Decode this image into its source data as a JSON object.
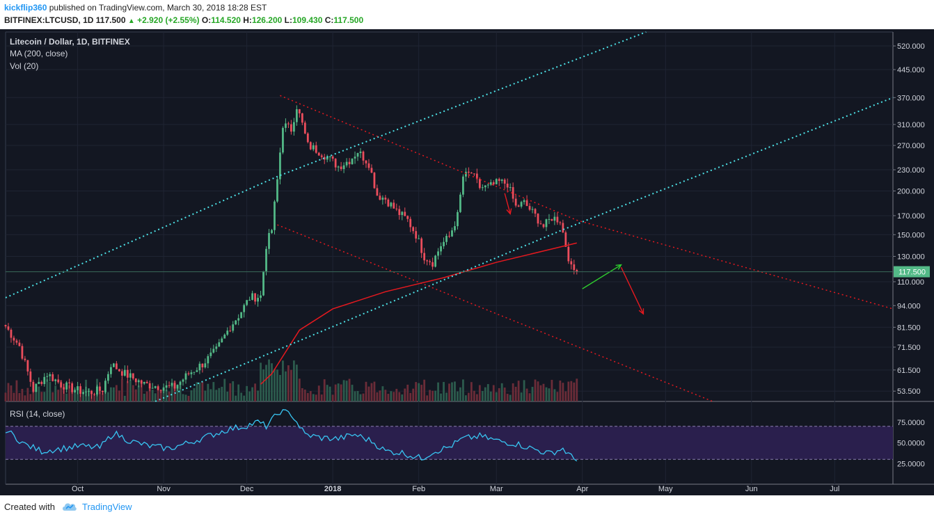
{
  "header": {
    "author": "kickflip360",
    "published": "published on TradingView.com, March 30, 2018 18:28 EST",
    "symbol": "BITFINEX:LTCUSD, 1D",
    "last": "117.500",
    "change": "+2.920 (+2.55%)",
    "o_label": "O:",
    "o": "114.520",
    "h_label": "H:",
    "h": "126.200",
    "l_label": "L:",
    "l": "109.430",
    "c_label": "C:",
    "c": "117.500"
  },
  "footer": {
    "created": "Created with",
    "brand": "TradingView"
  },
  "colors": {
    "bg": "#131722",
    "up": "#53b987",
    "down": "#eb4d5c",
    "ma": "#e5191f",
    "rsi": "#38c5f2",
    "channel": "#4de3e8",
    "trend": "#e5191f"
  },
  "chart_data": [
    {
      "type": "candlestick",
      "title": "Litecoin / Dollar, 1D, BITFINEX",
      "legend": [
        "Litecoin / Dollar, 1D, BITFINEX",
        "MA (200, close)",
        "Vol (20)"
      ],
      "x_range": [
        "2017-09-05",
        "2018-07-22"
      ],
      "ylim": [
        50,
        570
      ],
      "scale": "log",
      "y_ticks": [
        "520.000",
        "445.000",
        "370.000",
        "310.000",
        "270.000",
        "230.000",
        "200.000",
        "170.000",
        "150.000",
        "130.000",
        "110.000",
        "94.000",
        "81.500",
        "71.500",
        "61.500",
        "53.500"
      ],
      "x_ticks": [
        "Oct",
        "Nov",
        "Dec",
        "2018",
        "Feb",
        "Mar",
        "Apr",
        "May",
        "Jun",
        "Jul"
      ],
      "last_price_label": "117.500",
      "close_anchors": [
        [
          "2017-09-05",
          82
        ],
        [
          "2017-09-10",
          72
        ],
        [
          "2017-09-15",
          54
        ],
        [
          "2017-09-20",
          60
        ],
        [
          "2017-09-25",
          56
        ],
        [
          "2017-09-30",
          54
        ],
        [
          "2017-10-05",
          53
        ],
        [
          "2017-10-10",
          54
        ],
        [
          "2017-10-13",
          64
        ],
        [
          "2017-10-18",
          60
        ],
        [
          "2017-10-25",
          56
        ],
        [
          "2017-11-01",
          55
        ],
        [
          "2017-11-05",
          55
        ],
        [
          "2017-11-10",
          60
        ],
        [
          "2017-11-15",
          64
        ],
        [
          "2017-11-20",
          70
        ],
        [
          "2017-11-25",
          82
        ],
        [
          "2017-11-28",
          88
        ],
        [
          "2017-12-02",
          99
        ],
        [
          "2017-12-06",
          100
        ],
        [
          "2017-12-08",
          140
        ],
        [
          "2017-12-10",
          155
        ],
        [
          "2017-12-12",
          215
        ],
        [
          "2017-12-14",
          310
        ],
        [
          "2017-12-17",
          300
        ],
        [
          "2017-12-19",
          350
        ],
        [
          "2017-12-21",
          310
        ],
        [
          "2017-12-23",
          270
        ],
        [
          "2017-12-27",
          260
        ],
        [
          "2017-12-30",
          250
        ],
        [
          "2018-01-03",
          235
        ],
        [
          "2018-01-07",
          245
        ],
        [
          "2018-01-10",
          260
        ],
        [
          "2018-01-14",
          240
        ],
        [
          "2018-01-17",
          195
        ],
        [
          "2018-01-20",
          190
        ],
        [
          "2018-01-24",
          175
        ],
        [
          "2018-01-28",
          165
        ],
        [
          "2018-01-31",
          150
        ],
        [
          "2018-02-03",
          130
        ],
        [
          "2018-02-06",
          125
        ],
        [
          "2018-02-09",
          140
        ],
        [
          "2018-02-12",
          148
        ],
        [
          "2018-02-15",
          170
        ],
        [
          "2018-02-17",
          220
        ],
        [
          "2018-02-20",
          225
        ],
        [
          "2018-02-23",
          205
        ],
        [
          "2018-02-26",
          205
        ],
        [
          "2018-03-02",
          212
        ],
        [
          "2018-03-05",
          210
        ],
        [
          "2018-03-08",
          180
        ],
        [
          "2018-03-11",
          185
        ],
        [
          "2018-03-15",
          170
        ],
        [
          "2018-03-18",
          158
        ],
        [
          "2018-03-21",
          168
        ],
        [
          "2018-03-24",
          165
        ],
        [
          "2018-03-26",
          140
        ],
        [
          "2018-03-28",
          120
        ],
        [
          "2018-03-30",
          117.5
        ]
      ],
      "ma200": [
        [
          "2017-12-06",
          56
        ],
        [
          "2017-12-10",
          60
        ],
        [
          "2017-12-20",
          80
        ],
        [
          "2018-01-01",
          92
        ],
        [
          "2018-01-20",
          103
        ],
        [
          "2018-02-10",
          113
        ],
        [
          "2018-03-01",
          125
        ],
        [
          "2018-03-30",
          142
        ]
      ],
      "ma_label": "MA (200, close)",
      "vol_label": "Vol (20)",
      "channel_lines": [
        [
          [
            "2017-09-05",
            99
          ],
          [
            "2017-12-12",
            220
          ],
          [
            "2018-04-24",
            570
          ]
        ],
        [
          [
            "2017-10-29",
            50
          ],
          [
            "2018-03-25",
            155
          ],
          [
            "2018-07-22",
            370
          ]
        ]
      ],
      "trend_lines": [
        [
          [
            "2017-12-13",
            375
          ],
          [
            "2018-03-30",
            165
          ],
          [
            "2018-07-22",
            92
          ]
        ],
        [
          [
            "2017-12-12",
            160
          ],
          [
            "2018-05-18",
            50
          ]
        ]
      ],
      "annotation_arrows": [
        [
          [
            "2018-03-04",
            197
          ],
          [
            "2018-03-06",
            172
          ]
        ],
        [
          [
            "2018-04-01",
            105
          ],
          [
            "2018-04-15",
            123
          ]
        ],
        [
          [
            "2018-04-15",
            121
          ],
          [
            "2018-04-23",
            89
          ]
        ]
      ]
    },
    {
      "type": "line",
      "title": "RSI (14, close)",
      "ylim": [
        0,
        100
      ],
      "y_ticks": [
        "75.0000",
        "50.0000",
        "25.0000"
      ],
      "band": [
        30,
        70
      ],
      "x": [
        "2017-09-05",
        "2017-09-12",
        "2017-09-18",
        "2017-09-25",
        "2017-10-02",
        "2017-10-09",
        "2017-10-14",
        "2017-10-20",
        "2017-10-27",
        "2017-11-03",
        "2017-11-10",
        "2017-11-17",
        "2017-11-24",
        "2017-11-30",
        "2017-12-05",
        "2017-12-08",
        "2017-12-13",
        "2017-12-17",
        "2017-12-22",
        "2017-12-28",
        "2018-01-03",
        "2018-01-09",
        "2018-01-15",
        "2018-01-20",
        "2018-01-26",
        "2018-02-02",
        "2018-02-06",
        "2018-02-12",
        "2018-02-17",
        "2018-02-23",
        "2018-03-02",
        "2018-03-08",
        "2018-03-14",
        "2018-03-20",
        "2018-03-25",
        "2018-03-28",
        "2018-03-30"
      ],
      "values": [
        66,
        48,
        40,
        43,
        46,
        44,
        62,
        52,
        46,
        43,
        50,
        58,
        66,
        70,
        75,
        70,
        88,
        85,
        60,
        56,
        55,
        60,
        52,
        40,
        38,
        31,
        39,
        45,
        55,
        58,
        52,
        49,
        43,
        37,
        43,
        33,
        28
      ]
    }
  ]
}
